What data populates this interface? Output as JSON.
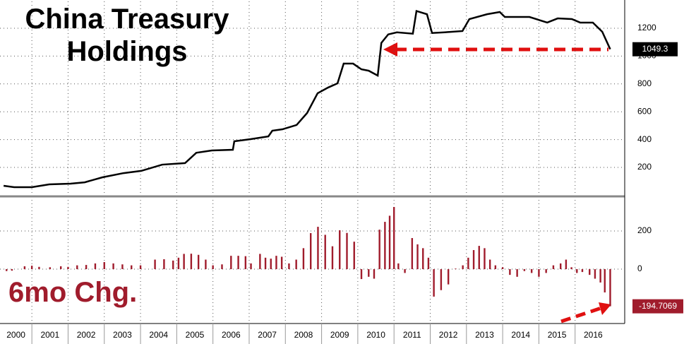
{
  "chart_data": [
    {
      "type": "line",
      "title": "China Treasury Holdings",
      "color": "#000000",
      "x": [
        2000.22,
        2000.51,
        2001.0,
        2001.48,
        2002.07,
        2002.46,
        2002.95,
        2003.53,
        2004.02,
        2004.6,
        2005.23,
        2005.54,
        2005.97,
        2006.55,
        2006.59,
        2007.04,
        2007.53,
        2007.64,
        2007.92,
        2008.31,
        2008.6,
        2008.89,
        2009.18,
        2009.44,
        2009.61,
        2009.87,
        2010.1,
        2010.3,
        2010.55,
        2010.65,
        2010.84,
        2011.08,
        2011.52,
        2011.62,
        2011.91,
        2012.05,
        2012.4,
        2012.89,
        2013.08,
        2013.57,
        2013.92,
        2014.06,
        2014.74,
        2015.23,
        2015.52,
        2015.91,
        2016.14,
        2016.49,
        2016.75,
        2016.97
      ],
      "values": [
        68,
        58,
        58,
        78,
        83,
        93,
        129,
        159,
        175,
        220,
        231,
        305,
        322,
        327,
        388,
        403,
        423,
        464,
        474,
        505,
        591,
        733,
        774,
        804,
        946,
        946,
        905,
        895,
        860,
        1095,
        1156,
        1171,
        1161,
        1324,
        1301,
        1166,
        1171,
        1180,
        1266,
        1301,
        1317,
        1281,
        1281,
        1241,
        1271,
        1266,
        1241,
        1241,
        1175,
        1049.3
      ],
      "xlim": [
        2000.12,
        2017.37
      ],
      "ylim": [
        0,
        1393
      ],
      "yticks": [
        200,
        400,
        600,
        800,
        1000,
        1200
      ],
      "xticks": [
        2000,
        2001,
        2002,
        2003,
        2004,
        2005,
        2006,
        2007,
        2008,
        2009,
        2010,
        2011,
        2012,
        2013,
        2014,
        2015,
        2016
      ],
      "grid": true
    },
    {
      "type": "bar",
      "annotation": "6mo Chg.",
      "color": "#a01c2c",
      "x": [
        2000.3,
        2000.45,
        2000.8,
        2001.0,
        2001.2,
        2001.5,
        2001.8,
        2002.0,
        2002.25,
        2002.5,
        2002.75,
        2003.0,
        2003.25,
        2003.5,
        2003.75,
        2004.0,
        2004.4,
        2004.65,
        2004.9,
        2005.05,
        2005.2,
        2005.4,
        2005.6,
        2005.8,
        2006.0,
        2006.25,
        2006.5,
        2006.7,
        2006.9,
        2007.05,
        2007.3,
        2007.45,
        2007.6,
        2007.75,
        2007.9,
        2008.1,
        2008.3,
        2008.5,
        2008.7,
        2008.9,
        2009.1,
        2009.3,
        2009.5,
        2009.7,
        2009.9,
        2010.1,
        2010.3,
        2010.45,
        2010.6,
        2010.75,
        2010.88,
        2011.0,
        2011.12,
        2011.3,
        2011.5,
        2011.65,
        2011.8,
        2011.95,
        2012.1,
        2012.3,
        2012.5,
        2012.7,
        2012.9,
        2013.05,
        2013.2,
        2013.35,
        2013.5,
        2013.65,
        2013.8,
        2014.0,
        2014.2,
        2014.4,
        2014.6,
        2014.8,
        2015.0,
        2015.2,
        2015.4,
        2015.6,
        2015.75,
        2015.9,
        2016.05,
        2016.2,
        2016.4,
        2016.55,
        2016.7,
        2016.82,
        2016.97
      ],
      "values": [
        -10,
        -8,
        15,
        18,
        12,
        10,
        15,
        12,
        20,
        22,
        30,
        37,
        30,
        25,
        20,
        20,
        50,
        52,
        45,
        60,
        80,
        81,
        75,
        50,
        20,
        25,
        70,
        70,
        68,
        30,
        80,
        60,
        55,
        70,
        65,
        30,
        50,
        110,
        189,
        222,
        180,
        120,
        204,
        190,
        144,
        -52,
        -40,
        -50,
        207,
        248,
        280,
        326,
        30,
        -20,
        163,
        130,
        110,
        60,
        -144,
        -110,
        -80,
        3,
        20,
        60,
        100,
        122,
        110,
        50,
        20,
        10,
        -30,
        -40,
        -10,
        -20,
        -40,
        -20,
        20,
        30,
        50,
        10,
        -20,
        -15,
        -30,
        -50,
        -70,
        -122,
        -194.7069
      ],
      "xlim": [
        2000.12,
        2017.37
      ],
      "ylim": [
        -285,
        363
      ],
      "yticks": [
        0,
        200
      ],
      "xticks": [
        2000,
        2001,
        2002,
        2003,
        2004,
        2005,
        2006,
        2007,
        2008,
        2009,
        2010,
        2011,
        2012,
        2013,
        2014,
        2015,
        2016
      ],
      "grid": true
    }
  ]
}
